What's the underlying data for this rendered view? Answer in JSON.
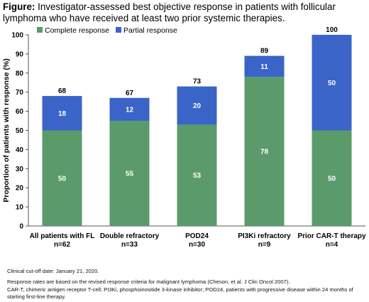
{
  "figure": {
    "label": "Figure:",
    "title": "Investigator-assessed best objective response in patients with follicular lymphoma who have received at least two prior systemic therapies."
  },
  "chart_data": {
    "type": "bar",
    "stacked": true,
    "ylabel": "Proportion of patients with response (%)",
    "xlabel": "",
    "ylim": [
      0,
      100
    ],
    "yticks": [
      0,
      10,
      20,
      30,
      40,
      50,
      60,
      70,
      80,
      90,
      100
    ],
    "grid": false,
    "legend_position": "top-left",
    "categories": [
      [
        "All patients with FL",
        "n=62"
      ],
      [
        "Double refractory",
        "n=33"
      ],
      [
        "POD24",
        "n=30"
      ],
      [
        "PI3Ki refractory",
        "n=9"
      ],
      [
        "Prior CAR-T therapy",
        "n=4"
      ]
    ],
    "series": [
      {
        "name": "Complete response",
        "color": "#5b9b6b",
        "values": [
          50,
          55,
          53,
          78,
          50
        ]
      },
      {
        "name": "Partial response",
        "color": "#3a64c8",
        "values": [
          18,
          12,
          20,
          11,
          50
        ]
      }
    ],
    "totals": [
      68,
      67,
      73,
      89,
      100
    ]
  },
  "notes": {
    "cutoff": "Clinical cut-off date: January 21, 2020.",
    "criteria": "Response rates are based on the revised response criteria for malignant lymphoma (Cheson, et al. J Clin Oncol 2007).",
    "abbrev": "CAR-T, chimeric antigen receptor T-cell; PI3Ki, phosphoinositide 3-kinase inhibitor; POD24, patients with progressive disease within 24 months of starting first-line therapy."
  }
}
